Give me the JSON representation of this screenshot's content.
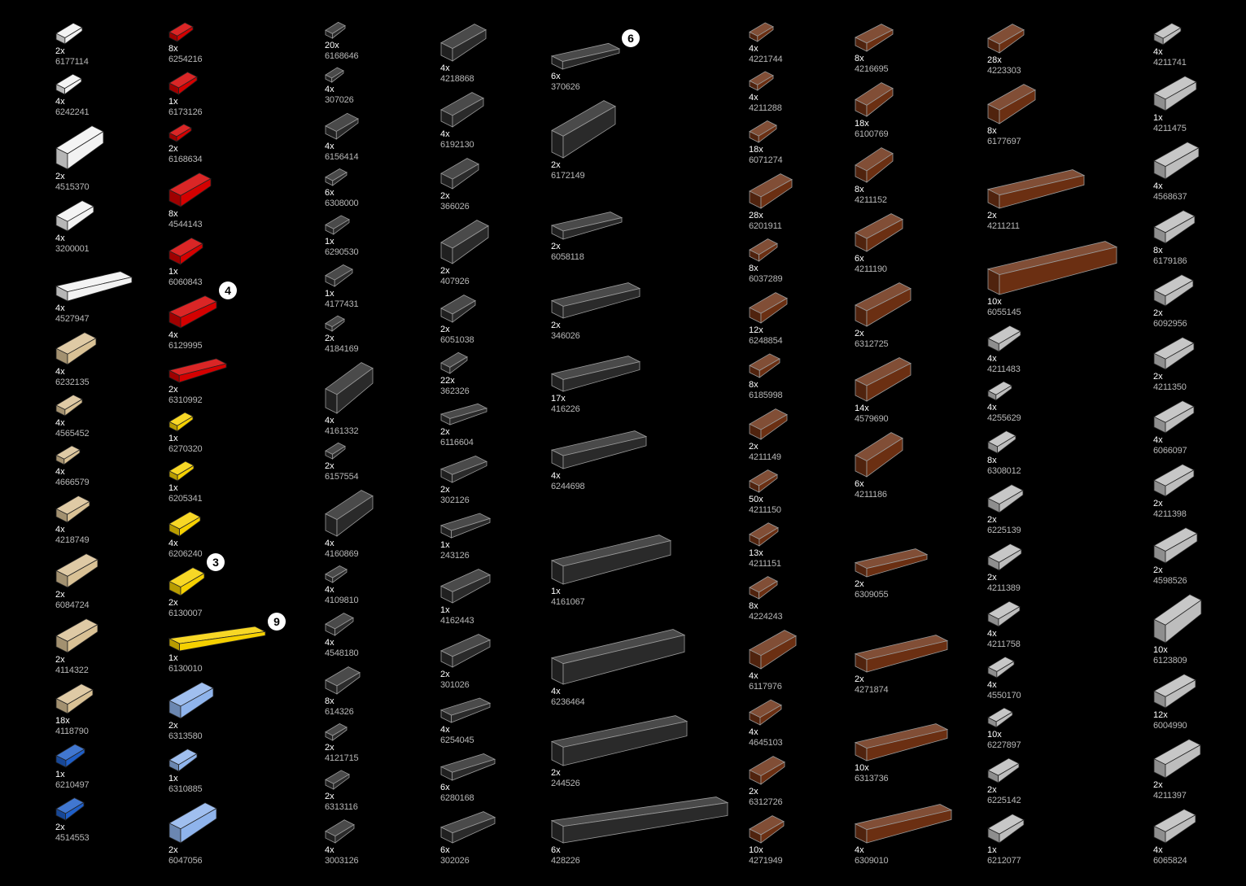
{
  "colors": {
    "white": "#f2f2f2",
    "tan": "#d9c195",
    "blue": "#1f5fc8",
    "red": "#d40000",
    "yellow": "#f5d000",
    "lightblue": "#8fb4ec",
    "darkgray": "#2a2a2a",
    "brown": "#6b2f12",
    "lightgray": "#bdbdbd"
  },
  "columns": [
    {
      "items": [
        {
          "qty": "2x",
          "part": "6177114",
          "color": "white"
        },
        {
          "qty": "4x",
          "part": "6242241",
          "color": "white"
        },
        {
          "qty": "2x",
          "part": "4515370",
          "color": "white"
        },
        {
          "qty": "4x",
          "part": "3200001",
          "color": "white"
        },
        {
          "qty": "4x",
          "part": "4527947",
          "color": "white"
        },
        {
          "qty": "4x",
          "part": "6232135",
          "color": "tan"
        },
        {
          "qty": "4x",
          "part": "4565452",
          "color": "tan"
        },
        {
          "qty": "4x",
          "part": "4666579",
          "color": "tan"
        },
        {
          "qty": "4x",
          "part": "4218749",
          "color": "tan"
        },
        {
          "qty": "2x",
          "part": "6084724",
          "color": "tan"
        },
        {
          "qty": "2x",
          "part": "4114322",
          "color": "tan"
        },
        {
          "qty": "18x",
          "part": "4118790",
          "color": "tan"
        },
        {
          "qty": "1x",
          "part": "6210497",
          "color": "blue"
        },
        {
          "qty": "2x",
          "part": "4514553",
          "color": "blue"
        }
      ]
    },
    {
      "items": [
        {
          "qty": "8x",
          "part": "6254216",
          "color": "red"
        },
        {
          "qty": "1x",
          "part": "6173126",
          "color": "red"
        },
        {
          "qty": "2x",
          "part": "6168634",
          "color": "red"
        },
        {
          "qty": "8x",
          "part": "4544143",
          "color": "red"
        },
        {
          "qty": "1x",
          "part": "6060843",
          "color": "red"
        },
        {
          "qty": "4x",
          "part": "6129995",
          "color": "red",
          "callout": "4"
        },
        {
          "qty": "2x",
          "part": "6310992",
          "color": "red"
        },
        {
          "qty": "1x",
          "part": "6270320",
          "color": "yellow"
        },
        {
          "qty": "1x",
          "part": "6205341",
          "color": "yellow"
        },
        {
          "qty": "4x",
          "part": "6206240",
          "color": "yellow"
        },
        {
          "qty": "2x",
          "part": "6130007",
          "color": "yellow",
          "callout": "3"
        },
        {
          "qty": "1x",
          "part": "6130010",
          "color": "yellow",
          "callout": "9"
        },
        {
          "qty": "2x",
          "part": "6313580",
          "color": "lightblue"
        },
        {
          "qty": "1x",
          "part": "6310885",
          "color": "lightblue"
        },
        {
          "qty": "2x",
          "part": "6047056",
          "color": "lightblue"
        }
      ]
    },
    {
      "items": [
        {
          "qty": "20x",
          "part": "6168646",
          "color": "darkgray"
        },
        {
          "qty": "4x",
          "part": "307026",
          "color": "darkgray"
        },
        {
          "qty": "4x",
          "part": "6156414",
          "color": "darkgray"
        },
        {
          "qty": "6x",
          "part": "6308000",
          "color": "darkgray"
        },
        {
          "qty": "1x",
          "part": "6290530",
          "color": "darkgray"
        },
        {
          "qty": "1x",
          "part": "4177431",
          "color": "darkgray"
        },
        {
          "qty": "2x",
          "part": "4184169",
          "color": "darkgray"
        },
        {
          "qty": "4x",
          "part": "4161332",
          "color": "darkgray"
        },
        {
          "qty": "2x",
          "part": "6157554",
          "color": "darkgray"
        },
        {
          "qty": "4x",
          "part": "4160869",
          "color": "darkgray"
        },
        {
          "qty": "4x",
          "part": "4109810",
          "color": "darkgray"
        },
        {
          "qty": "4x",
          "part": "4548180",
          "color": "darkgray"
        },
        {
          "qty": "8x",
          "part": "614326",
          "color": "darkgray"
        },
        {
          "qty": "2x",
          "part": "4121715",
          "color": "darkgray"
        },
        {
          "qty": "2x",
          "part": "6313116",
          "color": "darkgray"
        },
        {
          "qty": "4x",
          "part": "3003126",
          "color": "darkgray"
        }
      ]
    },
    {
      "items": [
        {
          "qty": "4x",
          "part": "4218868",
          "color": "darkgray"
        },
        {
          "qty": "4x",
          "part": "6192130",
          "color": "darkgray"
        },
        {
          "qty": "2x",
          "part": "366026",
          "color": "darkgray"
        },
        {
          "qty": "2x",
          "part": "407926",
          "color": "darkgray"
        },
        {
          "qty": "2x",
          "part": "6051038",
          "color": "darkgray"
        },
        {
          "qty": "22x",
          "part": "362326",
          "color": "darkgray"
        },
        {
          "qty": "2x",
          "part": "6116604",
          "color": "darkgray"
        },
        {
          "qty": "2x",
          "part": "302126",
          "color": "darkgray"
        },
        {
          "qty": "1x",
          "part": "243126",
          "color": "darkgray"
        },
        {
          "qty": "1x",
          "part": "4162443",
          "color": "darkgray"
        },
        {
          "qty": "2x",
          "part": "301026",
          "color": "darkgray"
        },
        {
          "qty": "4x",
          "part": "6254045",
          "color": "darkgray"
        },
        {
          "qty": "6x",
          "part": "6280168",
          "color": "darkgray"
        },
        {
          "qty": "6x",
          "part": "302026",
          "color": "darkgray"
        }
      ]
    },
    {
      "items": [
        {
          "qty": "6x",
          "part": "370626",
          "color": "darkgray",
          "callout": "6"
        },
        {
          "qty": "2x",
          "part": "6172149",
          "color": "darkgray"
        },
        {
          "qty": "2x",
          "part": "6058118",
          "color": "darkgray"
        },
        {
          "qty": "2x",
          "part": "346026",
          "color": "darkgray"
        },
        {
          "qty": "17x",
          "part": "416226",
          "color": "darkgray"
        },
        {
          "qty": "4x",
          "part": "6244698",
          "color": "darkgray"
        },
        {
          "qty": "1x",
          "part": "4161067",
          "color": "darkgray"
        },
        {
          "qty": "4x",
          "part": "6236464",
          "color": "darkgray"
        },
        {
          "qty": "2x",
          "part": "244526",
          "color": "darkgray"
        },
        {
          "qty": "6x",
          "part": "428226",
          "color": "darkgray"
        }
      ]
    },
    {
      "items": [
        {
          "qty": "4x",
          "part": "4221744",
          "color": "brown"
        },
        {
          "qty": "4x",
          "part": "4211288",
          "color": "brown"
        },
        {
          "qty": "18x",
          "part": "6071274",
          "color": "brown"
        },
        {
          "qty": "28x",
          "part": "6201911",
          "color": "brown"
        },
        {
          "qty": "8x",
          "part": "6037289",
          "color": "brown"
        },
        {
          "qty": "12x",
          "part": "6248854",
          "color": "brown"
        },
        {
          "qty": "8x",
          "part": "6185998",
          "color": "brown"
        },
        {
          "qty": "2x",
          "part": "4211149",
          "color": "brown"
        },
        {
          "qty": "50x",
          "part": "4211150",
          "color": "brown"
        },
        {
          "qty": "13x",
          "part": "4211151",
          "color": "brown"
        },
        {
          "qty": "8x",
          "part": "4224243",
          "color": "brown"
        },
        {
          "qty": "4x",
          "part": "6117976",
          "color": "brown"
        },
        {
          "qty": "4x",
          "part": "4645103",
          "color": "brown"
        },
        {
          "qty": "2x",
          "part": "6312726",
          "color": "brown"
        },
        {
          "qty": "10x",
          "part": "4271949",
          "color": "brown"
        }
      ]
    },
    {
      "items": [
        {
          "qty": "8x",
          "part": "4216695",
          "color": "brown"
        },
        {
          "qty": "18x",
          "part": "6100769",
          "color": "brown"
        },
        {
          "qty": "8x",
          "part": "4211152",
          "color": "brown"
        },
        {
          "qty": "6x",
          "part": "4211190",
          "color": "brown"
        },
        {
          "qty": "2x",
          "part": "6312725",
          "color": "brown"
        },
        {
          "qty": "14x",
          "part": "4579690",
          "color": "brown"
        },
        {
          "qty": "6x",
          "part": "4211186",
          "color": "brown"
        },
        {
          "qty": "2x",
          "part": "6309055",
          "color": "brown"
        },
        {
          "qty": "2x",
          "part": "4271874",
          "color": "brown"
        },
        {
          "qty": "10x",
          "part": "6313736",
          "color": "brown"
        },
        {
          "qty": "4x",
          "part": "6309010",
          "color": "brown"
        }
      ]
    },
    {
      "items": [
        {
          "qty": "28x",
          "part": "4223303",
          "color": "brown"
        },
        {
          "qty": "8x",
          "part": "6177697",
          "color": "brown"
        },
        {
          "qty": "2x",
          "part": "4211211",
          "color": "brown"
        },
        {
          "qty": "10x",
          "part": "6055145",
          "color": "brown"
        },
        {
          "qty": "4x",
          "part": "4211483",
          "color": "lightgray"
        },
        {
          "qty": "4x",
          "part": "4255629",
          "color": "lightgray"
        },
        {
          "qty": "8x",
          "part": "6308012",
          "color": "lightgray"
        },
        {
          "qty": "2x",
          "part": "6225139",
          "color": "lightgray"
        },
        {
          "qty": "2x",
          "part": "4211389",
          "color": "lightgray"
        },
        {
          "qty": "4x",
          "part": "4211758",
          "color": "lightgray"
        },
        {
          "qty": "4x",
          "part": "4550170",
          "color": "lightgray"
        },
        {
          "qty": "10x",
          "part": "6227897",
          "color": "lightgray"
        },
        {
          "qty": "2x",
          "part": "6225142",
          "color": "lightgray"
        },
        {
          "qty": "1x",
          "part": "6212077",
          "color": "lightgray"
        }
      ]
    },
    {
      "items": [
        {
          "qty": "4x",
          "part": "4211741",
          "color": "lightgray"
        },
        {
          "qty": "1x",
          "part": "4211475",
          "color": "lightgray"
        },
        {
          "qty": "4x",
          "part": "4568637",
          "color": "lightgray"
        },
        {
          "qty": "8x",
          "part": "6179186",
          "color": "lightgray"
        },
        {
          "qty": "2x",
          "part": "6092956",
          "color": "lightgray"
        },
        {
          "qty": "2x",
          "part": "4211350",
          "color": "lightgray"
        },
        {
          "qty": "4x",
          "part": "6066097",
          "color": "lightgray"
        },
        {
          "qty": "2x",
          "part": "4211398",
          "color": "lightgray"
        },
        {
          "qty": "2x",
          "part": "4598526",
          "color": "lightgray"
        },
        {
          "qty": "10x",
          "part": "6123809",
          "color": "lightgray"
        },
        {
          "qty": "12x",
          "part": "6004990",
          "color": "lightgray"
        },
        {
          "qty": "2x",
          "part": "4211397",
          "color": "lightgray"
        },
        {
          "qty": "4x",
          "part": "6065824",
          "color": "lightgray"
        }
      ]
    }
  ]
}
